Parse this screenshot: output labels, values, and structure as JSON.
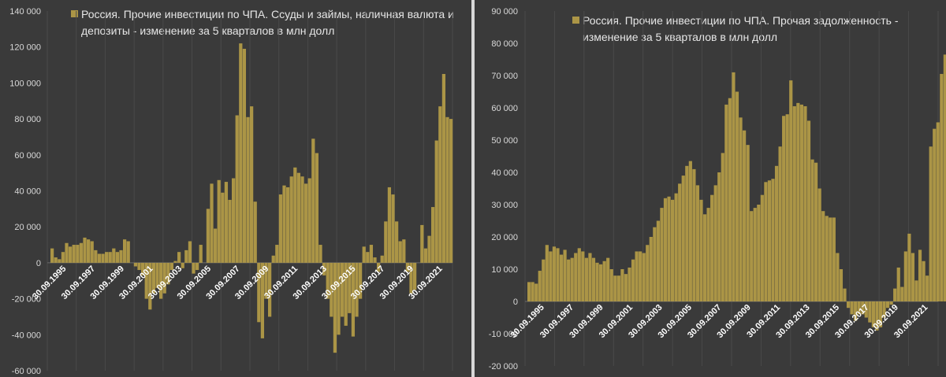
{
  "charts": [
    {
      "type": "bar",
      "legend": [
        "Россия. Прочие инвестиции по ЧПА. Ссуды и займы, наличная валюта и",
        "депозиты - изменение за 5 кварталов в млн долл"
      ],
      "legend_placement": "top",
      "bar_color": "#ab9546",
      "ylim": [
        -60000,
        140000
      ],
      "y_ticks": [
        -60000,
        -40000,
        -20000,
        0,
        20000,
        40000,
        60000,
        80000,
        100000,
        120000,
        140000
      ],
      "y_tick_labels": [
        "-60 000",
        "-40 000",
        "-20 000",
        "0",
        "20 000",
        "40 000",
        "60 000",
        "80 000",
        "100 000",
        "120 000",
        "140 000"
      ],
      "x_tick_labels": [
        "30.09.1995",
        "30.09.1997",
        "30.09.1999",
        "30.09.2001",
        "30.09.2003",
        "30.09.2005",
        "30.09.2007",
        "30.09.2009",
        "30.09.2011",
        "30.09.2013",
        "30.09.2015",
        "30.09.2017",
        "30.09.2019",
        "30.09.2021"
      ],
      "grid": "vertical",
      "values": [
        8000,
        3000,
        2000,
        6000,
        11000,
        9000,
        10000,
        10000,
        11000,
        14000,
        13000,
        12000,
        7000,
        5000,
        5000,
        6000,
        6000,
        8000,
        6000,
        7000,
        13000,
        12000,
        0,
        -2000,
        -4000,
        -7000,
        -20000,
        -26000,
        -17000,
        -14000,
        -20000,
        -17000,
        -12000,
        -4000,
        1000,
        6000,
        -3000,
        7000,
        12000,
        -6000,
        -4000,
        10000,
        0,
        30000,
        44000,
        19000,
        46000,
        39000,
        45000,
        35000,
        47000,
        82000,
        122000,
        119000,
        81000,
        87000,
        34000,
        -33000,
        -42000,
        -20000,
        -30000,
        4000,
        10000,
        38000,
        43000,
        42000,
        48000,
        53000,
        50000,
        48000,
        44000,
        47000,
        69000,
        61000,
        10000,
        -7000,
        -20000,
        -30000,
        -50000,
        -40000,
        -30000,
        -35000,
        -28000,
        -41000,
        -30000,
        -20000,
        9000,
        6000,
        10000,
        3000,
        -5000,
        4000,
        23000,
        42000,
        38000,
        23000,
        12000,
        13000,
        -5000,
        -17000,
        -15000,
        0,
        21000,
        8000,
        15000,
        31000,
        68000,
        87000,
        105000,
        81000,
        80000
      ]
    },
    {
      "type": "bar",
      "legend": [
        "Россия. Прочие инвестиции по ЧПА. Прочая задолженность -",
        "изменение за 5 кварталов в млн долл"
      ],
      "legend_placement": "top",
      "bar_color": "#ab9546",
      "ylim": [
        -20000,
        90000
      ],
      "y_ticks": [
        -20000,
        -10000,
        0,
        10000,
        20000,
        30000,
        40000,
        50000,
        60000,
        70000,
        80000,
        90000
      ],
      "y_tick_labels": [
        "-20 000",
        "-10 000",
        "0",
        "10 000",
        "20 000",
        "30 000",
        "40 000",
        "50 000",
        "60 000",
        "70 000",
        "80 000",
        "90 000"
      ],
      "x_tick_labels": [
        "30.09.1995",
        "30.09.1997",
        "30.09.1999",
        "30.09.2001",
        "30.09.2003",
        "30.09.2005",
        "30.09.2007",
        "30.09.2009",
        "30.09.2011",
        "30.09.2013",
        "30.09.2015",
        "30.09.2017",
        "30.09.2019",
        "30.09.2021"
      ],
      "grid": "vertical",
      "values": [
        6000,
        6000,
        5500,
        9500,
        13000,
        17500,
        15500,
        17000,
        16500,
        14500,
        16000,
        13000,
        13500,
        15000,
        16500,
        15500,
        13500,
        15000,
        13500,
        12000,
        11500,
        12500,
        13500,
        10000,
        8000,
        8000,
        10000,
        8500,
        10500,
        13000,
        15500,
        15500,
        15000,
        17500,
        20000,
        23000,
        25000,
        29000,
        32000,
        32500,
        31500,
        33500,
        36500,
        39000,
        42000,
        43500,
        41000,
        36000,
        31500,
        27000,
        29000,
        33000,
        36000,
        40000,
        46000,
        61000,
        63000,
        71000,
        65000,
        57000,
        53000,
        48500,
        28000,
        29000,
        30000,
        33000,
        37000,
        37500,
        38000,
        42000,
        48000,
        57500,
        58000,
        68500,
        60500,
        61500,
        61000,
        60500,
        56000,
        44000,
        43000,
        35000,
        28000,
        26500,
        26000,
        26000,
        15000,
        10000,
        4000,
        -2000,
        -4000,
        -6000,
        -4000,
        -4000,
        -5000,
        -6500,
        -8000,
        -9000,
        -8000,
        -5000,
        -2000,
        -1000,
        4000,
        10500,
        4500,
        15500,
        21000,
        15000,
        6500,
        16000,
        12500,
        8000,
        48000,
        53500,
        55500,
        70500,
        76500
      ]
    }
  ]
}
